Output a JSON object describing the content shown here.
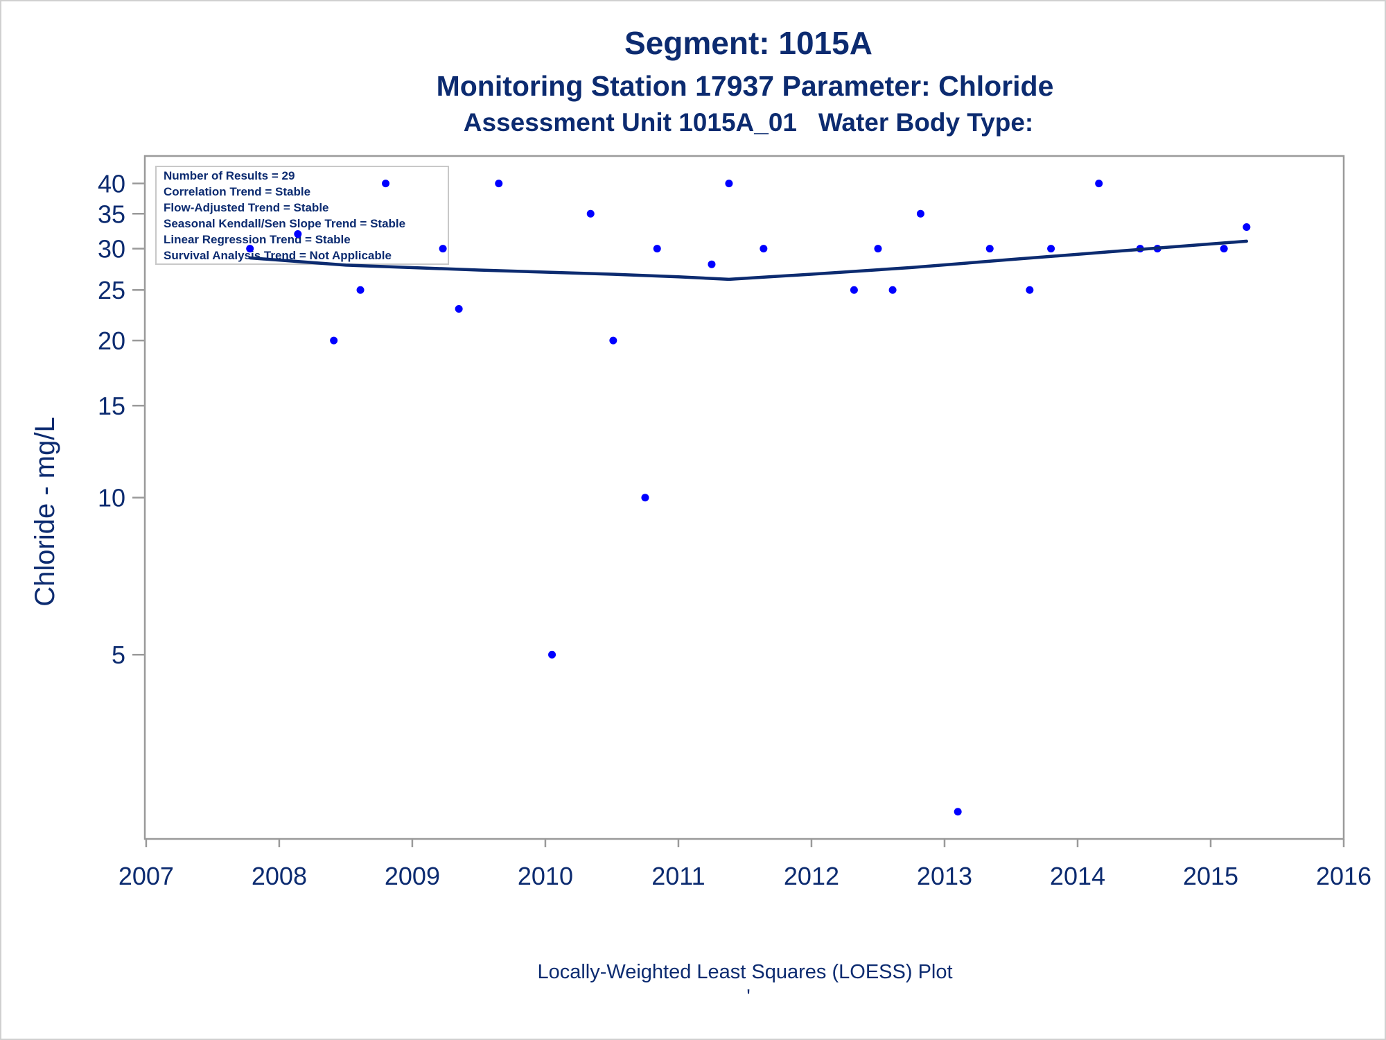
{
  "chart_data": {
    "type": "scatter",
    "title": "Segment: 1015A",
    "subtitle": "Monitoring Station 17937 Parameter: Chloride",
    "subtitle2": "Assessment Unit 1015A_01   Water Body Type:",
    "xlabel": "",
    "ylabel": "Chloride - mg/L",
    "footnote": "Locally-Weighted Least Squares (LOESS) Plot",
    "footnote2": "'",
    "y_scale": "log",
    "xlim": [
      2006.99,
      2016.0
    ],
    "ylim": [
      2.3,
      43
    ],
    "x_ticks": [
      2007,
      2008,
      2009,
      2010,
      2011,
      2012,
      2013,
      2014,
      2015,
      2016
    ],
    "y_ticks": [
      5,
      10,
      15,
      20,
      25,
      30,
      35,
      40
    ],
    "grid": false,
    "legend_placement": "none",
    "stats_box": {
      "placement": "top-left",
      "lines": [
        "Number of Results = 29",
        "Correlation Trend = Stable",
        "Flow-Adjusted Trend = Stable",
        "Seasonal Kendall/Sen Slope Trend = Stable",
        "Linear Regression Trend = Stable",
        "Survival Analysis Trend = Not Applicable"
      ]
    },
    "series": [
      {
        "kind": "points",
        "color": "#0000ff",
        "x": [
          2007.78,
          2008.14,
          2008.41,
          2008.61,
          2008.8,
          2009.23,
          2009.35,
          2009.65,
          2010.05,
          2010.34,
          2010.51,
          2010.75,
          2010.84,
          2011.25,
          2011.38,
          2011.64,
          2012.32,
          2012.5,
          2012.61,
          2012.82,
          2013.1,
          2013.34,
          2013.64,
          2013.8,
          2014.16,
          2014.47,
          2014.6,
          2015.1,
          2015.27
        ],
        "y": [
          30,
          32,
          20,
          25,
          40,
          30,
          23,
          40,
          5,
          35,
          20,
          10,
          30,
          28,
          40,
          30,
          25,
          30,
          25,
          35,
          2.5,
          30,
          25,
          30,
          40,
          30,
          30,
          30,
          33
        ]
      },
      {
        "kind": "line",
        "color": "#0c2b70",
        "x": [
          2007.78,
          2008.5,
          2009.5,
          2010.5,
          2011.0,
          2011.38,
          2012.0,
          2012.75,
          2013.5,
          2014.25,
          2015.27
        ],
        "y": [
          28.8,
          27.9,
          27.3,
          26.8,
          26.5,
          26.2,
          26.8,
          27.6,
          28.6,
          29.6,
          31.0
        ]
      }
    ]
  }
}
